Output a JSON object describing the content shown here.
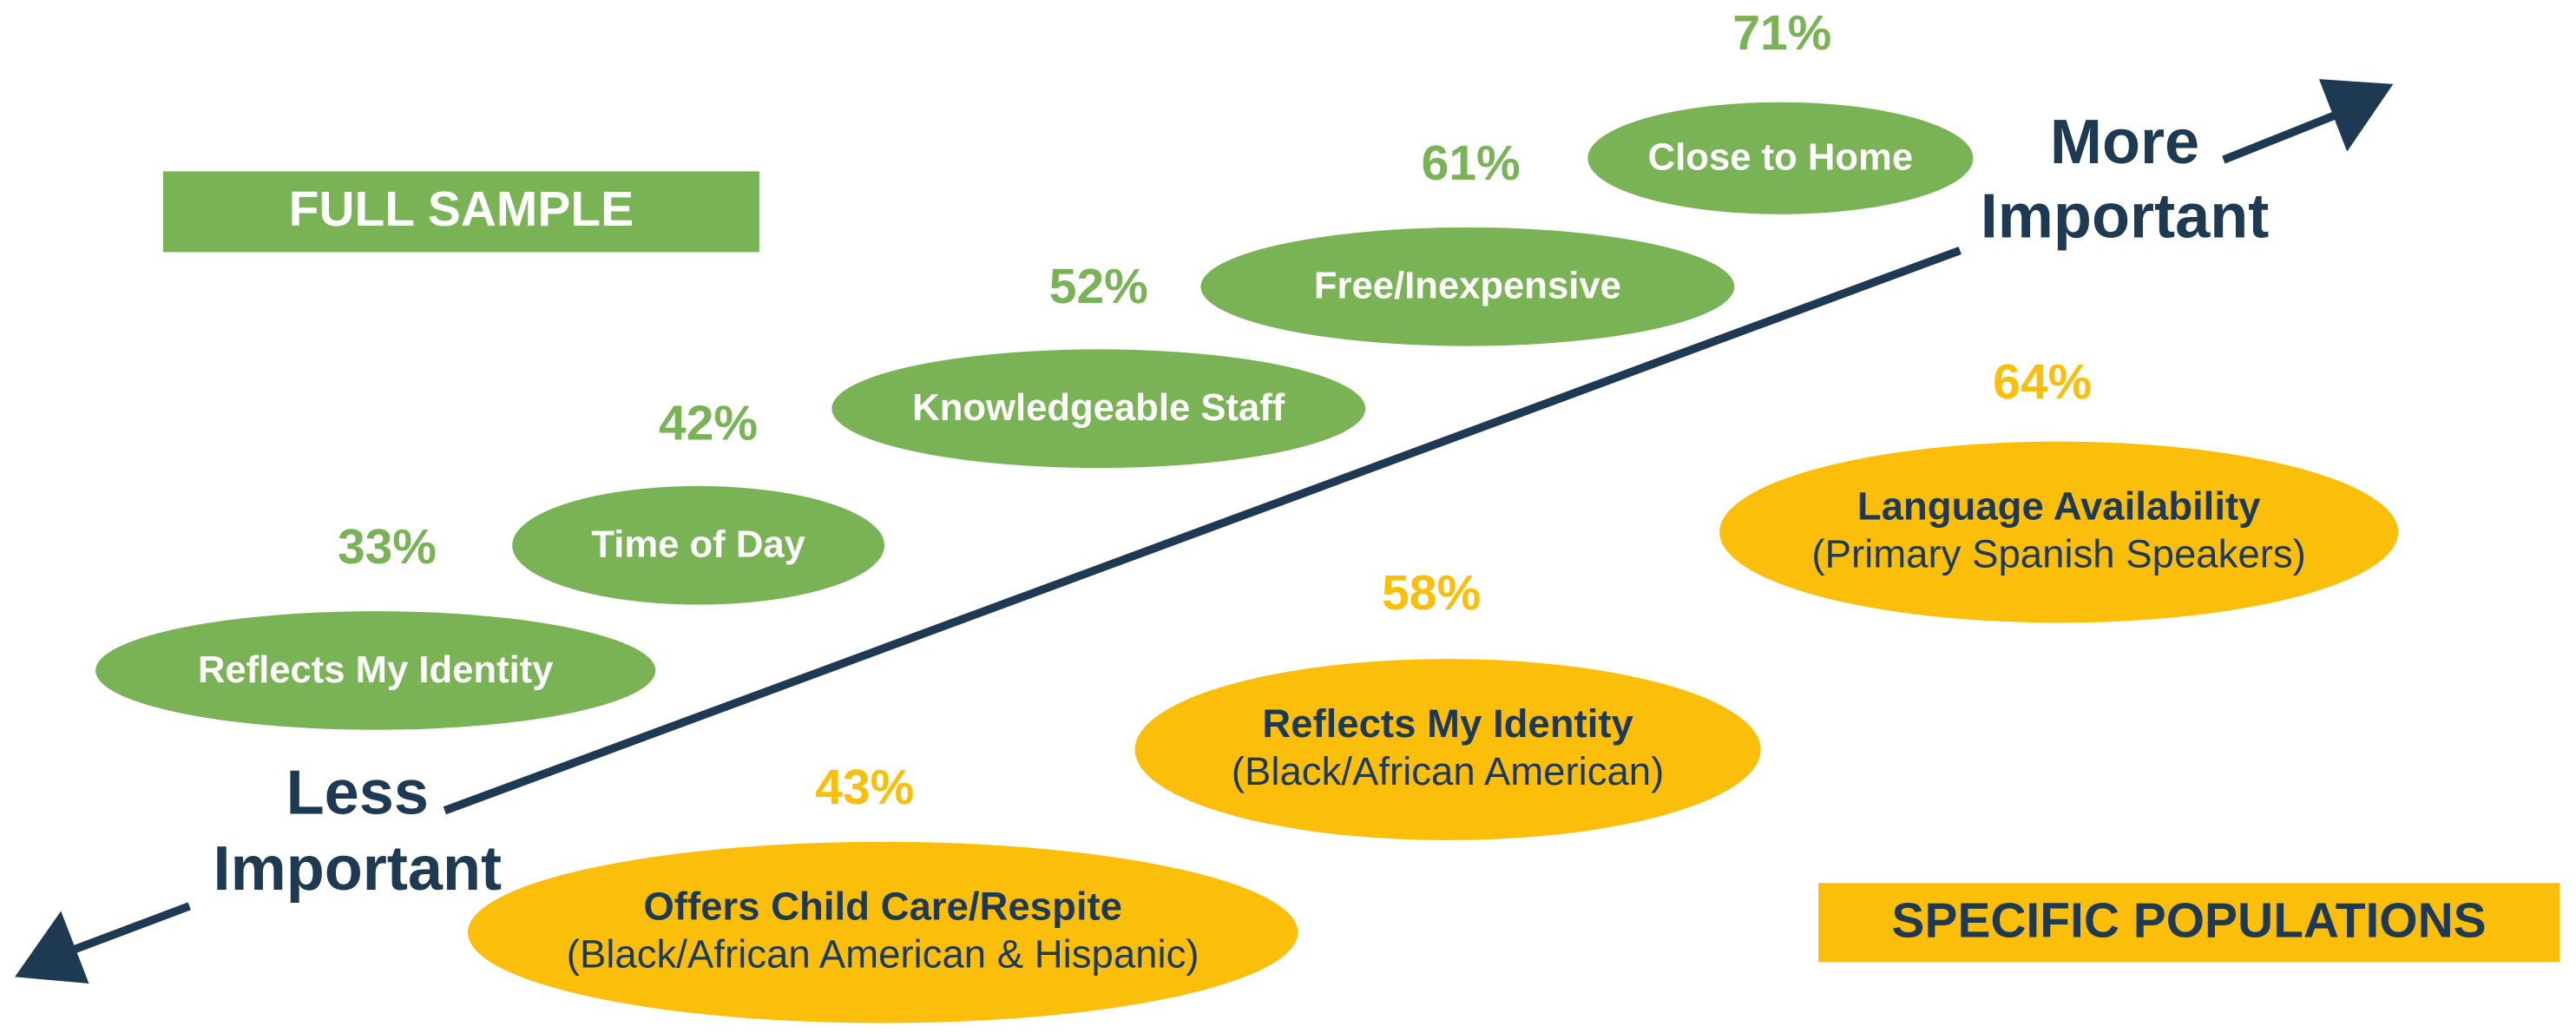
{
  "axis": {
    "high": [
      "More",
      "Important"
    ],
    "low": [
      "Less",
      "Important"
    ]
  },
  "full_sample": {
    "label": "FULL SAMPLE",
    "items": [
      {
        "label": "Reflects My Identity",
        "value": "33%"
      },
      {
        "label": "Time of Day",
        "value": "42%"
      },
      {
        "label": "Knowledgeable Staff",
        "value": "52%"
      },
      {
        "label": "Free/Inexpensive",
        "value": "61%"
      },
      {
        "label": "Close to Home",
        "value": "71%"
      }
    ]
  },
  "specific_populations": {
    "label": "SPECIFIC POPULATIONS",
    "items": [
      {
        "label": "Offers Child Care/Respite",
        "sublabel": "(Black/African American & Hispanic)",
        "value": "43%"
      },
      {
        "label": "Reflects My Identity",
        "sublabel": "(Black/African American)",
        "value": "58%"
      },
      {
        "label": "Language Availability",
        "sublabel": "(Primary Spanish Speakers)",
        "value": "64%"
      }
    ]
  }
}
